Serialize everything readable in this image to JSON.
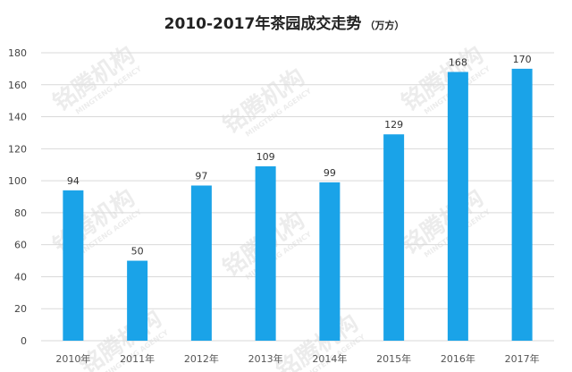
{
  "chart_data": {
    "type": "bar",
    "title": "2010-2017年茶园成交走势",
    "title_unit": "（万方）",
    "categories": [
      "2010年",
      "2011年",
      "2012年",
      "2013年",
      "2014年",
      "2015年",
      "2016年",
      "2017年"
    ],
    "values": [
      94,
      50,
      97,
      109,
      99,
      129,
      168,
      170
    ],
    "ylim": [
      0,
      180
    ],
    "yticks": [
      0,
      20,
      40,
      60,
      80,
      100,
      120,
      140,
      160,
      180
    ],
    "grid": true,
    "bar_color": "#1aa3e8",
    "data_labels": true
  },
  "watermark": {
    "brand": "铭腾机构",
    "brand_en": "MINGTENG AGENCY"
  }
}
